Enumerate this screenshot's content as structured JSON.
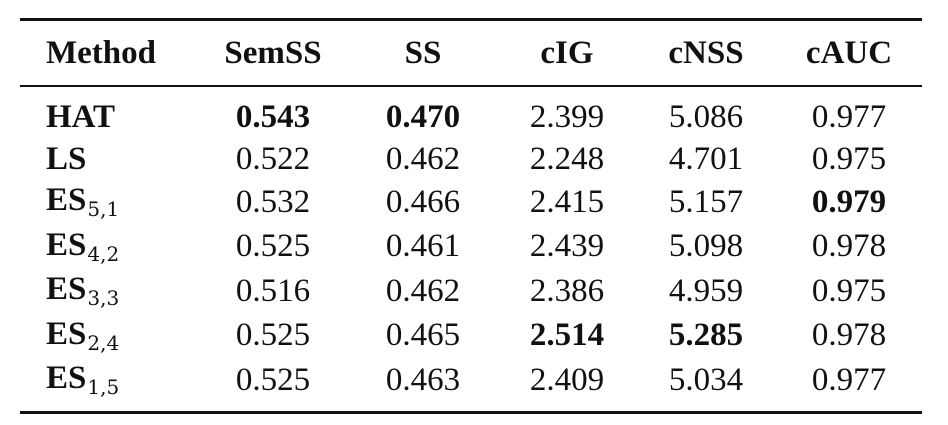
{
  "table": {
    "columns": [
      "Method",
      "SemSS",
      "SS",
      "cIG",
      "cNSS",
      "cAUC"
    ],
    "rows": [
      {
        "method": "HAT",
        "sub": "",
        "values": [
          "0.543",
          "0.470",
          "2.399",
          "5.086",
          "0.977"
        ],
        "bold": [
          true,
          true,
          false,
          false,
          false
        ]
      },
      {
        "method": "LS",
        "sub": "",
        "values": [
          "0.522",
          "0.462",
          "2.248",
          "4.701",
          "0.975"
        ],
        "bold": [
          false,
          false,
          false,
          false,
          false
        ]
      },
      {
        "method": "ES",
        "sub": "5,1",
        "values": [
          "0.532",
          "0.466",
          "2.415",
          "5.157",
          "0.979"
        ],
        "bold": [
          false,
          false,
          false,
          false,
          true
        ]
      },
      {
        "method": "ES",
        "sub": "4,2",
        "values": [
          "0.525",
          "0.461",
          "2.439",
          "5.098",
          "0.978"
        ],
        "bold": [
          false,
          false,
          false,
          false,
          false
        ]
      },
      {
        "method": "ES",
        "sub": "3,3",
        "values": [
          "0.516",
          "0.462",
          "2.386",
          "4.959",
          "0.975"
        ],
        "bold": [
          false,
          false,
          false,
          false,
          false
        ]
      },
      {
        "method": "ES",
        "sub": "2,4",
        "values": [
          "0.525",
          "0.465",
          "2.514",
          "5.285",
          "0.978"
        ],
        "bold": [
          false,
          false,
          true,
          true,
          false
        ]
      },
      {
        "method": "ES",
        "sub": "1,5",
        "values": [
          "0.525",
          "0.463",
          "2.409",
          "5.034",
          "0.977"
        ],
        "bold": [
          false,
          false,
          false,
          false,
          false
        ]
      }
    ]
  }
}
